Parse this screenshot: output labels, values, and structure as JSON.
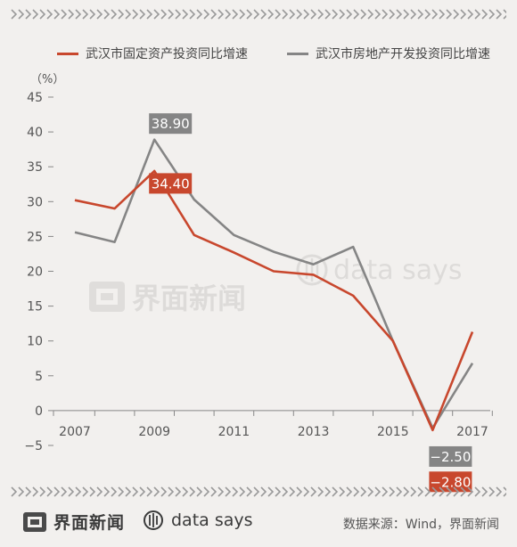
{
  "legend": {
    "series1": "武汉市固定资产投资同比增速",
    "series2": "武汉市房地产开发投资同比增速"
  },
  "unit_label": "（%）",
  "watermark": {
    "brand": "界面新闻",
    "ds": "data says"
  },
  "footer": {
    "brand": "界面新闻",
    "ds": "data says",
    "source": "数据来源：Wind，界面新闻"
  },
  "colors": {
    "series1": "#c8472d",
    "series2": "#858585",
    "background": "#f2f0ee"
  },
  "chart_data": {
    "type": "line",
    "x": [
      2007,
      2008,
      2009,
      2010,
      2011,
      2012,
      2013,
      2014,
      2015,
      2016,
      2017
    ],
    "x_tick_labels": [
      "2007",
      "2009",
      "2011",
      "2013",
      "2015",
      "2017"
    ],
    "ylim": [
      -5,
      45
    ],
    "y_ticks": [
      -5,
      0,
      5,
      10,
      15,
      20,
      25,
      30,
      35,
      40,
      45
    ],
    "y_tick_labels": [
      "−5",
      "0",
      "5",
      "10",
      "15",
      "20",
      "25",
      "30",
      "35",
      "40",
      "45"
    ],
    "series": [
      {
        "name": "武汉市固定资产投资同比增速",
        "values": [
          30.2,
          29.0,
          34.4,
          25.2,
          22.7,
          20.0,
          19.5,
          16.5,
          10.0,
          -2.8,
          11.3
        ]
      },
      {
        "name": "武汉市房地产开发投资同比增速",
        "values": [
          25.6,
          24.2,
          38.9,
          30.3,
          25.2,
          22.8,
          21.0,
          23.5,
          10.0,
          -2.5,
          6.8
        ]
      }
    ],
    "annotations": [
      {
        "series": 1,
        "index": 2,
        "label": "38.90"
      },
      {
        "series": 0,
        "index": 2,
        "label": "34.40"
      },
      {
        "series": 1,
        "index": 9,
        "label": "−2.50"
      },
      {
        "series": 0,
        "index": 9,
        "label": "−2.80"
      }
    ],
    "legend_position": "top",
    "grid": false
  }
}
